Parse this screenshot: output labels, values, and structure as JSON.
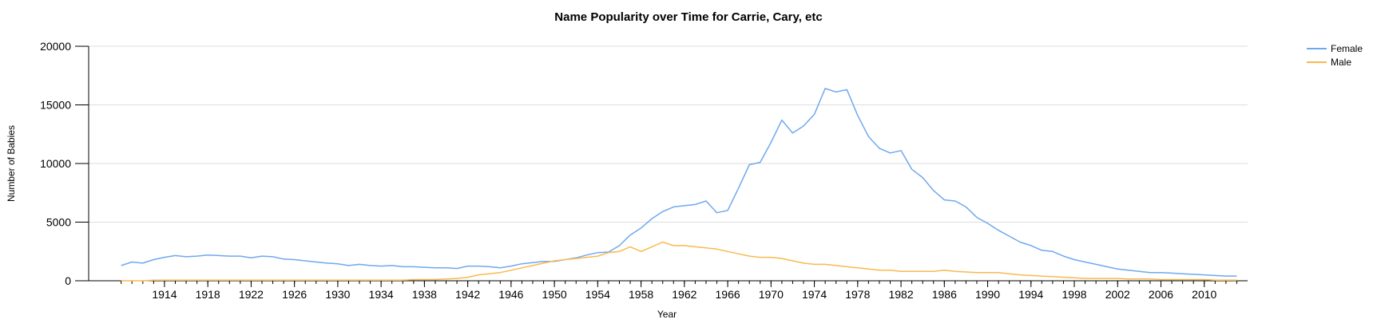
{
  "chart_data": {
    "type": "line",
    "title": "Name Popularity over Time for Carrie, Cary, etc",
    "xlabel": "Year",
    "ylabel": "Number of Babies",
    "ylim": [
      0,
      20000
    ],
    "xlim": [
      1907,
      2014
    ],
    "yticks": [
      0,
      5000,
      10000,
      15000,
      20000
    ],
    "xticks": [
      1914,
      1918,
      1922,
      1926,
      1930,
      1934,
      1938,
      1942,
      1946,
      1950,
      1954,
      1958,
      1962,
      1966,
      1970,
      1974,
      1978,
      1982,
      1986,
      1990,
      1994,
      1998,
      2002,
      2006,
      2010
    ],
    "grid": "horizontal",
    "legend": "top-right",
    "x": [
      1910,
      1911,
      1912,
      1913,
      1914,
      1915,
      1916,
      1917,
      1918,
      1919,
      1920,
      1921,
      1922,
      1923,
      1924,
      1925,
      1926,
      1927,
      1928,
      1929,
      1930,
      1931,
      1932,
      1933,
      1934,
      1935,
      1936,
      1937,
      1938,
      1939,
      1940,
      1941,
      1942,
      1943,
      1944,
      1945,
      1946,
      1947,
      1948,
      1949,
      1950,
      1951,
      1952,
      1953,
      1954,
      1955,
      1956,
      1957,
      1958,
      1959,
      1960,
      1961,
      1962,
      1963,
      1964,
      1965,
      1966,
      1967,
      1968,
      1969,
      1970,
      1971,
      1972,
      1973,
      1974,
      1975,
      1976,
      1977,
      1978,
      1979,
      1980,
      1981,
      1982,
      1983,
      1984,
      1985,
      1986,
      1987,
      1988,
      1989,
      1990,
      1991,
      1992,
      1993,
      1994,
      1995,
      1996,
      1997,
      1998,
      1999,
      2000,
      2001,
      2002,
      2003,
      2004,
      2005,
      2006,
      2007,
      2008,
      2009,
      2010,
      2011,
      2012,
      2013
    ],
    "series": [
      {
        "name": "Female",
        "color": "#6fa8ee",
        "values": [
          1300,
          1600,
          1500,
          1800,
          2000,
          2150,
          2050,
          2100,
          2200,
          2150,
          2100,
          2100,
          1950,
          2100,
          2050,
          1850,
          1800,
          1700,
          1600,
          1500,
          1450,
          1300,
          1400,
          1300,
          1250,
          1300,
          1200,
          1200,
          1150,
          1100,
          1100,
          1050,
          1250,
          1250,
          1200,
          1100,
          1250,
          1450,
          1550,
          1650,
          1650,
          1800,
          1950,
          2200,
          2400,
          2450,
          3000,
          3900,
          4500,
          5300,
          5900,
          6300,
          6400,
          6500,
          6800,
          5800,
          6000,
          7900,
          9900,
          10100,
          11800,
          13700,
          12600,
          13200,
          14200,
          16400,
          16100,
          16300,
          14100,
          12300,
          11300,
          10900,
          11100,
          9500,
          8800,
          7700,
          6900,
          6800,
          6300,
          5400,
          4900,
          4300,
          3800,
          3300,
          3000,
          2600,
          2500,
          2100,
          1800,
          1600,
          1400,
          1200,
          1000,
          900,
          800,
          700,
          700,
          650,
          600,
          550,
          500,
          450,
          400,
          400
        ]
      },
      {
        "name": "Male",
        "color": "#f9b94f",
        "values": [
          0,
          0,
          0,
          50,
          50,
          50,
          50,
          50,
          50,
          50,
          50,
          50,
          50,
          50,
          50,
          50,
          50,
          50,
          50,
          50,
          50,
          50,
          50,
          50,
          50,
          50,
          50,
          100,
          100,
          100,
          150,
          200,
          300,
          500,
          600,
          700,
          900,
          1100,
          1300,
          1500,
          1700,
          1800,
          1900,
          2000,
          2100,
          2400,
          2500,
          2900,
          2500,
          2900,
          3300,
          3000,
          3000,
          2900,
          2800,
          2700,
          2500,
          2300,
          2100,
          2000,
          2000,
          1900,
          1700,
          1500,
          1400,
          1400,
          1300,
          1200,
          1100,
          1000,
          900,
          900,
          800,
          800,
          800,
          800,
          900,
          800,
          750,
          700,
          700,
          700,
          600,
          500,
          450,
          400,
          350,
          300,
          250,
          200,
          200,
          200,
          200,
          150,
          150,
          150,
          100,
          100,
          100,
          100,
          100,
          50,
          50,
          50
        ]
      }
    ]
  }
}
